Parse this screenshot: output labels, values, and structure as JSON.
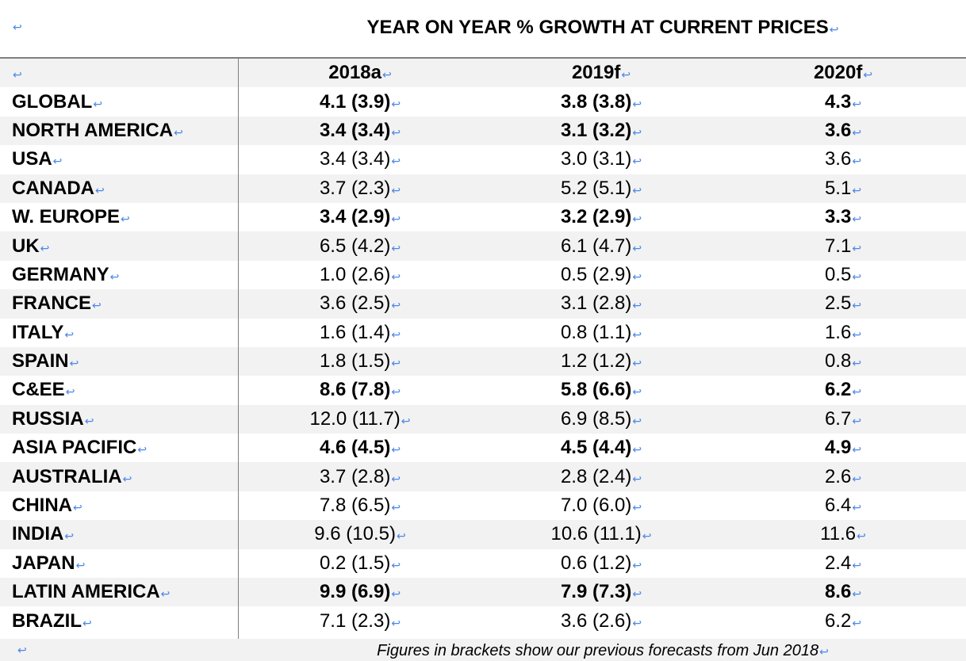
{
  "title": "YEAR ON YEAR % GROWTH AT CURRENT PRICES",
  "mark": "↩",
  "columns": [
    "2018a",
    "2019f",
    "2020f"
  ],
  "rows": [
    {
      "label": "GLOBAL",
      "v2018": "4.1 (3.9)",
      "v2019": "3.8 (3.8)",
      "v2020": "4.3",
      "bold": true
    },
    {
      "label": "NORTH AMERICA",
      "v2018": "3.4 (3.4)",
      "v2019": "3.1 (3.2)",
      "v2020": "3.6",
      "bold": true
    },
    {
      "label": "USA",
      "v2018": "3.4 (3.4)",
      "v2019": "3.0 (3.1)",
      "v2020": "3.6",
      "bold": false
    },
    {
      "label": "CANADA",
      "v2018": "3.7 (2.3)",
      "v2019": "5.2 (5.1)",
      "v2020": "5.1",
      "bold": false
    },
    {
      "label": "W. EUROPE",
      "v2018": "3.4 (2.9)",
      "v2019": "3.2 (2.9)",
      "v2020": "3.3",
      "bold": true
    },
    {
      "label": "UK",
      "v2018": "6.5 (4.2)",
      "v2019": "6.1 (4.7)",
      "v2020": "7.1",
      "bold": false
    },
    {
      "label": "GERMANY",
      "v2018": "1.0 (2.6)",
      "v2019": "0.5 (2.9)",
      "v2020": "0.5",
      "bold": false
    },
    {
      "label": "FRANCE",
      "v2018": "3.6 (2.5)",
      "v2019": "3.1 (2.8)",
      "v2020": "2.5",
      "bold": false
    },
    {
      "label": "ITALY",
      "v2018": "1.6 (1.4)",
      "v2019": "0.8 (1.1)",
      "v2020": "1.6",
      "bold": false
    },
    {
      "label": "SPAIN",
      "v2018": "1.8 (1.5)",
      "v2019": "1.2 (1.2)",
      "v2020": "0.8",
      "bold": false
    },
    {
      "label": "C&EE",
      "v2018": "8.6 (7.8)",
      "v2019": "5.8 (6.6)",
      "v2020": "6.2",
      "bold": true
    },
    {
      "label": "RUSSIA",
      "v2018": "12.0 (11.7)",
      "v2019": "6.9 (8.5)",
      "v2020": "6.7",
      "bold": false
    },
    {
      "label": "ASIA PACIFIC",
      "v2018": "4.6 (4.5)",
      "v2019": "4.5 (4.4)",
      "v2020": "4.9",
      "bold": true
    },
    {
      "label": "AUSTRALIA",
      "v2018": "3.7 (2.8)",
      "v2019": "2.8 (2.4)",
      "v2020": "2.6",
      "bold": false
    },
    {
      "label": "CHINA",
      "v2018": "7.8 (6.5)",
      "v2019": "7.0 (6.0)",
      "v2020": "6.4",
      "bold": false
    },
    {
      "label": "INDIA",
      "v2018": "9.6 (10.5)",
      "v2019": "10.6 (11.1)",
      "v2020": "11.6",
      "bold": false
    },
    {
      "label": "JAPAN",
      "v2018": "0.2 (1.5)",
      "v2019": "0.6 (1.2)",
      "v2020": "2.4",
      "bold": false
    },
    {
      "label": "LATIN AMERICA",
      "v2018": "9.9 (6.9)",
      "v2019": "7.9 (7.3)",
      "v2020": "8.6",
      "bold": true
    },
    {
      "label": "BRAZIL",
      "v2018": "7.1 (2.3)",
      "v2019": "3.6 (2.6)",
      "v2020": "6.2",
      "bold": false
    }
  ],
  "footnote": "Figures in brackets show our previous forecasts from Jun 2018"
}
